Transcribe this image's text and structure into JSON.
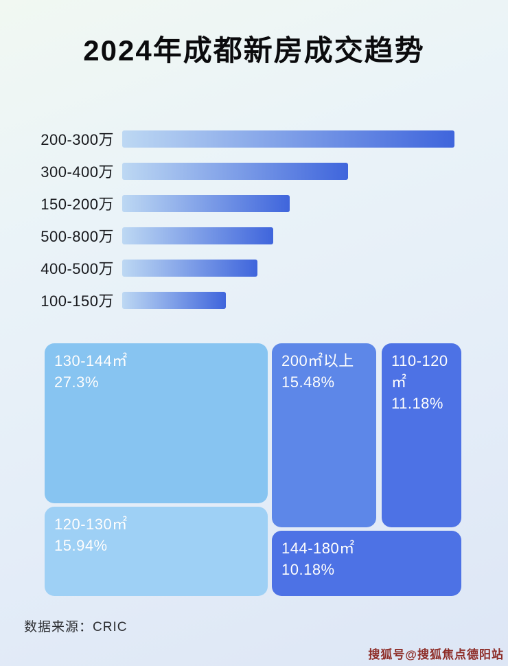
{
  "page": {
    "title": "2024年成都新房成交趋势",
    "source": "数据来源：CRIC",
    "watermark": "搜狐号@搜狐焦点德阳站"
  },
  "chart_data": [
    {
      "type": "bar",
      "orientation": "horizontal",
      "title": "2024年成都新房成交趋势",
      "categories": [
        "200-300万",
        "300-400万",
        "150-200万",
        "500-800万",
        "400-500万",
        "100-150万"
      ],
      "values": [
        100,
        68,
        50.5,
        45.4,
        40.6,
        31.3
      ],
      "value_note": "relative bar length, % of longest bar (no numeric labels shown in image)",
      "bar_gradient": [
        "#bdd8f3",
        "#3f65dc"
      ],
      "grid": false,
      "legend": false
    },
    {
      "type": "treemap",
      "title": "",
      "items": [
        {
          "label": "130-144㎡",
          "value": 27.3,
          "display": "27.3%",
          "color": "#87c4f1"
        },
        {
          "label": "200㎡以上",
          "value": 15.48,
          "display": "15.48%",
          "color": "#5d87e8"
        },
        {
          "label": "110-120㎡",
          "value": 11.18,
          "display": "11.18%",
          "color": "#4d72e5"
        },
        {
          "label": "120-130㎡",
          "value": 15.94,
          "display": "15.94%",
          "color": "#9ed0f5"
        },
        {
          "label": "144-180㎡",
          "value": 10.18,
          "display": "10.18%",
          "color": "#4d72e5"
        }
      ]
    }
  ]
}
